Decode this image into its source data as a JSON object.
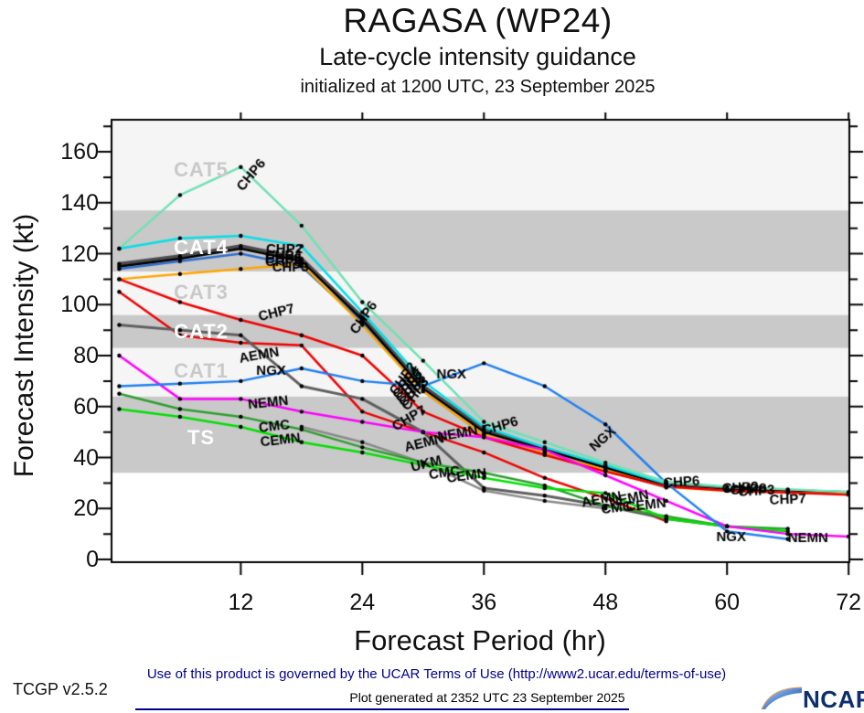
{
  "header": {
    "title": "RAGASA (WP24)",
    "subtitle": "Late-cycle intensity guidance",
    "init_line": "initialized at 1200 UTC, 23 September 2025"
  },
  "footer": {
    "terms": "Use of this product is governed by the UCAR Terms of Use (http://www2.ucar.edu/terms-of-use)",
    "generated": "Plot generated at 2352 UTC  23 September 2025",
    "version": "TCGP v2.5.2"
  },
  "logo": {
    "text": "NCAR",
    "swoosh_color": "#1a57a8",
    "text_color": "#0d2f6e"
  },
  "axes": {
    "x_label": "Forecast Period (hr)",
    "y_label": "Forecast Intensity (kt)",
    "x_ticks": [
      12,
      24,
      36,
      48,
      60,
      72
    ],
    "y_ticks": [
      0,
      20,
      40,
      60,
      80,
      100,
      120,
      140,
      160
    ]
  },
  "chart_data": {
    "type": "line",
    "title": "RAGASA (WP24) late-cycle intensity guidance",
    "xlabel": "Forecast Period (hr)",
    "ylabel": "Forecast Intensity (kt)",
    "xlim": [
      0,
      72
    ],
    "ylim": [
      0,
      172
    ],
    "grid": false,
    "point_markers": "black dots every 6 h",
    "bands": [
      {
        "label": "TS",
        "from": 34,
        "to": 64,
        "shade": "dark",
        "label_kt": 47.8,
        "label_color": "#ffffff"
      },
      {
        "label": "CAT1",
        "from": 64,
        "to": 83,
        "shade": "light",
        "label_kt": 73.8,
        "label_color": "#c9c9c9"
      },
      {
        "label": "CAT2",
        "from": 83,
        "to": 96,
        "shade": "dark",
        "label_kt": 89.3,
        "label_color": "#ffffff"
      },
      {
        "label": "CAT3",
        "from": 96,
        "to": 113,
        "shade": "light",
        "label_kt": 104.8,
        "label_color": "#c9c9c9"
      },
      {
        "label": "CAT4",
        "from": 113,
        "to": 137,
        "shade": "dark",
        "label_kt": 122.5,
        "label_color": "#ffffff"
      },
      {
        "label": "CAT5",
        "from": 137,
        "to": 172,
        "shade": "light",
        "label_kt": 153,
        "label_color": "#c9c9c9"
      }
    ],
    "band_dark_color": "#c9c9c9",
    "band_light_color": "#f5f5f5",
    "series": [
      {
        "name": "CHP8",
        "color": "#4d4d4d",
        "lw": 4,
        "t": [
          0,
          6,
          12,
          18,
          24,
          30,
          36,
          42,
          48,
          54,
          60,
          66,
          72
        ],
        "values": [
          116,
          119,
          123,
          118,
          95,
          68,
          51,
          43.5,
          36.5,
          29.2,
          27.6,
          26.9,
          26.2
        ],
        "labels": [
          {
            "t": 16.2,
            "kt": 117,
            "rot": 0
          },
          {
            "t": 28.9,
            "kt": 66.5,
            "rot": -55
          },
          {
            "t": 62.1,
            "kt": 27.6,
            "rot": -3
          }
        ]
      },
      {
        "name": "CHP4",
        "color": "#2f6fd0",
        "lw": 2.5,
        "t": [
          0,
          6,
          12,
          18,
          24,
          30,
          36,
          42,
          48,
          54
        ],
        "values": [
          114,
          117,
          120,
          115,
          93,
          66,
          49,
          42,
          35,
          28.2
        ],
        "labels": [
          {
            "t": 16.2,
            "kt": 119.5,
            "rot": 0
          },
          {
            "t": 28.3,
            "kt": 69.5,
            "rot": -55
          }
        ]
      },
      {
        "name": "CHP5",
        "color": "#00e0e8",
        "lw": 2.5,
        "t": [
          0,
          6,
          12,
          18,
          24,
          30,
          36,
          42,
          48,
          54
        ],
        "values": [
          122,
          126,
          127,
          123,
          97,
          70,
          52,
          44,
          37,
          29.5
        ],
        "labels": [
          {
            "t": 16.2,
            "kt": 118,
            "rot": 0
          },
          {
            "t": 28.6,
            "kt": 68,
            "rot": -55
          }
        ]
      },
      {
        "name": "CHP2",
        "color": "#000000",
        "lw": 2.5,
        "t": [
          0,
          6,
          12,
          18,
          24,
          30,
          36,
          42,
          48,
          54,
          60,
          66,
          72
        ],
        "values": [
          115,
          118,
          122,
          117,
          94,
          67,
          50,
          43,
          36,
          28.8,
          27.3,
          26.6,
          26
        ],
        "labels": [
          {
            "t": 16.3,
            "kt": 122,
            "rot": 0
          },
          {
            "t": 28.0,
            "kt": 71,
            "rot": -55
          },
          {
            "t": 61.3,
            "kt": 28.3,
            "rot": -3
          }
        ]
      },
      {
        "name": "CHP3",
        "color": "#ffa500",
        "lw": 2.5,
        "t": [
          0,
          6,
          12,
          18,
          24,
          30,
          36,
          42,
          48,
          54,
          60,
          66,
          72
        ],
        "values": [
          110,
          112,
          114,
          116,
          92,
          66,
          49,
          42,
          35,
          28.4,
          26.9,
          26.2,
          25.7
        ],
        "labels": [
          {
            "t": 16.9,
            "kt": 114.8,
            "rot": 0
          },
          {
            "t": 29.2,
            "kt": 65,
            "rot": -55
          },
          {
            "t": 62.9,
            "kt": 27.0,
            "rot": -3
          }
        ]
      },
      {
        "name": "CHP7",
        "color": "#f00000",
        "lw": 2.5,
        "t": [
          0,
          6,
          12,
          18,
          24,
          30,
          36,
          42,
          48,
          54
        ],
        "values": [
          105,
          88,
          85,
          84,
          58,
          50,
          42,
          32,
          24,
          15
        ],
        "labels": []
      },
      {
        "name": "CHP7",
        "color": "#f00000",
        "lw": 2.5,
        "t": [
          0,
          6,
          12,
          18,
          24,
          30,
          36,
          42,
          48,
          54,
          60,
          66,
          72
        ],
        "values": [
          110,
          101,
          94,
          88,
          80,
          58,
          48,
          41,
          34.5,
          28.6,
          27,
          26.3,
          25.4
        ],
        "labels": [
          {
            "t": 15.5,
            "kt": 97,
            "rot": -14
          },
          {
            "t": 28.6,
            "kt": 55.5,
            "rot": -30
          },
          {
            "t": 66.0,
            "kt": 23.7,
            "rot": -2
          }
        ]
      },
      {
        "name": "UKM",
        "color": "#8a8a8a",
        "lw": 2.5,
        "t": [
          18,
          24,
          30,
          36,
          42,
          48
        ],
        "values": [
          52,
          46,
          38,
          27,
          23,
          20
        ],
        "labels": [
          {
            "t": 30.3,
            "kt": 37.7,
            "rot": -14
          }
        ]
      },
      {
        "name": "AEMN",
        "color": "#5f5f5f",
        "lw": 3,
        "t": [
          0,
          6,
          12,
          18,
          24,
          30,
          36,
          42,
          48,
          54,
          60
        ],
        "values": [
          92,
          90,
          88,
          68,
          63,
          50,
          28,
          25,
          21,
          16,
          13
        ],
        "labels": [
          {
            "t": 13.8,
            "kt": 80.3,
            "rot": -10
          },
          {
            "t": 30.1,
            "kt": 45.9,
            "rot": -14
          },
          {
            "t": 47.6,
            "kt": 23.7,
            "rot": -10
          }
        ]
      },
      {
        "name": "CMC",
        "color": "#2da02d",
        "lw": 2.5,
        "t": [
          0,
          6,
          12,
          18,
          24,
          30,
          36,
          42,
          48,
          54,
          60,
          66
        ],
        "values": [
          65,
          59,
          56,
          51,
          44,
          38,
          34,
          29,
          21,
          17,
          13,
          12
        ],
        "labels": [
          {
            "t": 15.3,
            "kt": 52.4,
            "rot": -6
          },
          {
            "t": 32.1,
            "kt": 34.1,
            "rot": -8
          },
          {
            "t": 49.1,
            "kt": 20.4,
            "rot": -6
          }
        ]
      },
      {
        "name": "CEMN",
        "color": "#00e000",
        "lw": 2.5,
        "t": [
          0,
          6,
          12,
          18,
          24,
          30,
          36,
          42,
          48,
          54,
          60,
          66
        ],
        "values": [
          59,
          56,
          52,
          46,
          42,
          37,
          32,
          28,
          26,
          16,
          13,
          11
        ],
        "labels": [
          {
            "t": 15.9,
            "kt": 47.0,
            "rot": -6
          },
          {
            "t": 34.3,
            "kt": 33.0,
            "rot": -8
          },
          {
            "t": 52.0,
            "kt": 21.5,
            "rot": -6
          }
        ]
      },
      {
        "name": "NEMN",
        "color": "#ff00ff",
        "lw": 2.5,
        "t": [
          0,
          6,
          12,
          18,
          24,
          30,
          36,
          42,
          48,
          54,
          60,
          66,
          72
        ],
        "values": [
          80,
          63,
          63,
          58,
          54,
          50,
          48,
          43,
          33,
          23,
          13,
          10,
          9
        ],
        "labels": [
          {
            "t": 14.7,
            "kt": 61.7,
            "rot": -6
          },
          {
            "t": 33.4,
            "kt": 49.5,
            "rot": -10
          },
          {
            "t": 50.3,
            "kt": 24.0,
            "rot": -12
          },
          {
            "t": 68.0,
            "kt": 8.6,
            "rot": 0
          }
        ]
      },
      {
        "name": "NGX",
        "color": "#2080f0",
        "lw": 2.5,
        "t": [
          0,
          6,
          12,
          18,
          24,
          30,
          36,
          42,
          48,
          54,
          60,
          66
        ],
        "values": [
          68,
          69,
          70,
          75,
          70,
          68,
          77,
          68,
          53,
          30,
          11,
          8
        ],
        "labels": [
          {
            "t": 15.0,
            "kt": 74.3,
            "rot": 0
          },
          {
            "t": 32.8,
            "kt": 72.8,
            "rot": 0
          },
          {
            "t": 47.7,
            "kt": 47.4,
            "rot": -42
          },
          {
            "t": 60.4,
            "kt": 9.0,
            "rot": 0
          }
        ]
      },
      {
        "name": "CHP6",
        "color": "#6fe2b4",
        "lw": 2.5,
        "t": [
          0,
          6,
          12,
          18,
          24,
          30,
          36,
          42,
          48,
          54,
          60,
          66,
          72
        ],
        "values": [
          122,
          143,
          154,
          131,
          101,
          78,
          54,
          46,
          38,
          30.5,
          28.5,
          27.5,
          26.5
        ],
        "labels": [
          {
            "t": 13.0,
            "kt": 151,
            "rot": -50
          },
          {
            "t": 24.1,
            "kt": 95,
            "rot": -55
          },
          {
            "t": 37.6,
            "kt": 52.5,
            "rot": -16
          },
          {
            "t": 55.5,
            "kt": 30.5,
            "rot": -4
          }
        ]
      }
    ]
  }
}
